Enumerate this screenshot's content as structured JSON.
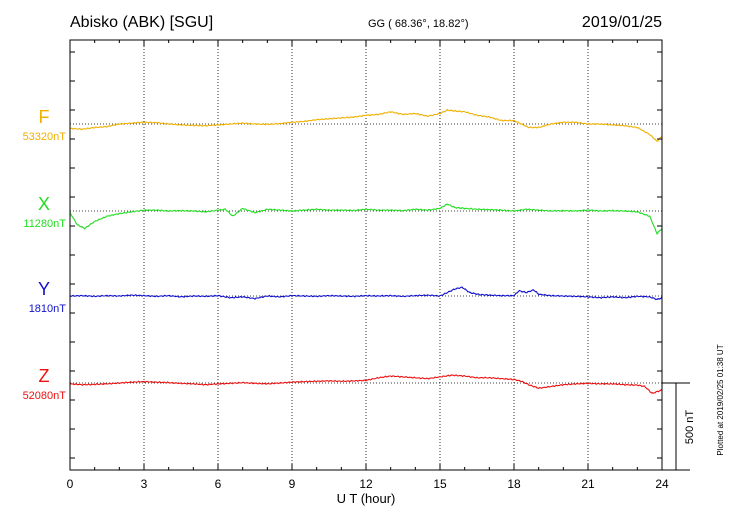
{
  "header": {
    "station": "Abisko (ABK)  [SGU]",
    "coords": "GG ( 68.36°,  18.82°)",
    "date": "2019/01/25"
  },
  "footer": {
    "plotted": "Plotted at 2019/02/25 01:38 UT"
  },
  "chart_data": {
    "type": "line",
    "xlabel": "U T (hour)",
    "xlim": [
      0,
      24
    ],
    "xticks": [
      "0",
      "3",
      "6",
      "9",
      "12",
      "15",
      "18",
      "21",
      "24"
    ],
    "grid": true,
    "scale_bar": {
      "label": "500 nT",
      "value": 500
    },
    "series": [
      {
        "name": "F",
        "baseline_label": "53320nT",
        "baseline": 53320,
        "color": "#f0b000",
        "x": [
          0,
          0.5,
          1,
          1.5,
          2,
          2.5,
          3,
          3.5,
          4,
          4.5,
          5,
          5.5,
          6,
          6.5,
          7,
          7.5,
          8,
          8.5,
          9,
          9.5,
          10,
          10.5,
          11,
          11.5,
          12,
          12.5,
          13,
          13.5,
          14,
          14.5,
          15,
          15.3,
          15.6,
          16,
          16.5,
          17,
          17.5,
          18,
          18.3,
          18.6,
          19,
          19.5,
          20,
          20.5,
          21,
          21.5,
          22,
          22.5,
          23,
          23.5,
          23.8,
          24
        ],
        "y": [
          53295,
          53290,
          53300,
          53305,
          53320,
          53325,
          53330,
          53328,
          53320,
          53315,
          53312,
          53310,
          53315,
          53320,
          53325,
          53320,
          53318,
          53322,
          53330,
          53335,
          53345,
          53350,
          53355,
          53360,
          53370,
          53375,
          53390,
          53375,
          53380,
          53365,
          53380,
          53400,
          53395,
          53390,
          53370,
          53360,
          53340,
          53340,
          53320,
          53300,
          53300,
          53320,
          53330,
          53330,
          53320,
          53320,
          53315,
          53310,
          53300,
          53260,
          53220,
          53250
        ]
      },
      {
        "name": "X",
        "baseline_label": "11280nT",
        "baseline": 11280,
        "color": "#22dd22",
        "x": [
          0,
          0.3,
          0.6,
          1,
          1.5,
          2,
          2.5,
          3,
          3.5,
          4,
          4.5,
          5,
          5.5,
          6,
          6.3,
          6.6,
          7,
          7.5,
          8,
          8.5,
          9,
          9.5,
          10,
          10.5,
          11,
          11.5,
          12,
          12.5,
          13,
          13.5,
          14,
          14.5,
          15,
          15.3,
          15.6,
          16,
          16.5,
          17,
          17.5,
          18,
          18.5,
          19,
          19.5,
          20,
          20.5,
          21,
          21.5,
          22,
          22.5,
          23,
          23.5,
          23.8,
          24
        ],
        "y": [
          11270,
          11200,
          11180,
          11220,
          11250,
          11265,
          11275,
          11285,
          11285,
          11280,
          11282,
          11280,
          11275,
          11285,
          11290,
          11250,
          11295,
          11270,
          11290,
          11285,
          11280,
          11285,
          11290,
          11285,
          11285,
          11283,
          11290,
          11285,
          11285,
          11282,
          11290,
          11285,
          11295,
          11320,
          11300,
          11295,
          11290,
          11288,
          11285,
          11280,
          11290,
          11285,
          11280,
          11282,
          11280,
          11285,
          11280,
          11282,
          11280,
          11275,
          11250,
          11150,
          11180
        ]
      },
      {
        "name": "Y",
        "baseline_label": "1810nT",
        "baseline": 1810,
        "color": "#1111cc",
        "x": [
          0,
          0.5,
          1,
          1.5,
          2,
          2.5,
          3,
          3.5,
          4,
          4.5,
          5,
          5.5,
          6,
          6.5,
          7,
          7.5,
          8,
          8.5,
          9,
          9.5,
          10,
          10.5,
          11,
          11.5,
          12,
          12.5,
          13,
          13.5,
          14,
          14.5,
          15,
          15.3,
          15.6,
          15.9,
          16.2,
          16.6,
          17,
          17.5,
          18,
          18.2,
          18.5,
          18.8,
          19,
          19.5,
          20,
          20.5,
          21,
          21.5,
          22,
          22.5,
          23,
          23.5,
          23.8,
          24
        ],
        "y": [
          1810,
          1812,
          1808,
          1812,
          1810,
          1815,
          1812,
          1808,
          1812,
          1805,
          1810,
          1808,
          1812,
          1800,
          1805,
          1795,
          1810,
          1805,
          1812,
          1810,
          1808,
          1812,
          1810,
          1808,
          1812,
          1810,
          1812,
          1808,
          1812,
          1815,
          1810,
          1830,
          1850,
          1860,
          1830,
          1818,
          1815,
          1812,
          1812,
          1840,
          1830,
          1845,
          1820,
          1812,
          1810,
          1808,
          1805,
          1800,
          1805,
          1800,
          1808,
          1805,
          1790,
          1800
        ]
      },
      {
        "name": "Z",
        "baseline_label": "52080nT",
        "baseline": 52080,
        "color": "#ee1111",
        "x": [
          0,
          0.5,
          1,
          1.5,
          2,
          2.5,
          3,
          3.5,
          4,
          4.5,
          5,
          5.5,
          6,
          6.5,
          7,
          7.5,
          8,
          8.5,
          9,
          9.5,
          10,
          10.5,
          11,
          11.5,
          12,
          12.5,
          13,
          13.5,
          14,
          14.5,
          15,
          15.5,
          16,
          16.5,
          17,
          17.5,
          18,
          18.3,
          18.6,
          19,
          19.5,
          20,
          20.5,
          21,
          21.5,
          22,
          22.5,
          23,
          23.3,
          23.6,
          23.8,
          24
        ],
        "y": [
          52075,
          52070,
          52072,
          52075,
          52080,
          52085,
          52088,
          52085,
          52082,
          52078,
          52075,
          52070,
          52075,
          52078,
          52082,
          52078,
          52075,
          52080,
          52085,
          52088,
          52090,
          52092,
          52090,
          52092,
          52095,
          52110,
          52120,
          52115,
          52110,
          52105,
          52115,
          52125,
          52120,
          52110,
          52110,
          52105,
          52100,
          52090,
          52070,
          52050,
          52060,
          52070,
          52075,
          52078,
          52075,
          52075,
          52070,
          52068,
          52060,
          52020,
          52030,
          52040
        ]
      }
    ]
  }
}
